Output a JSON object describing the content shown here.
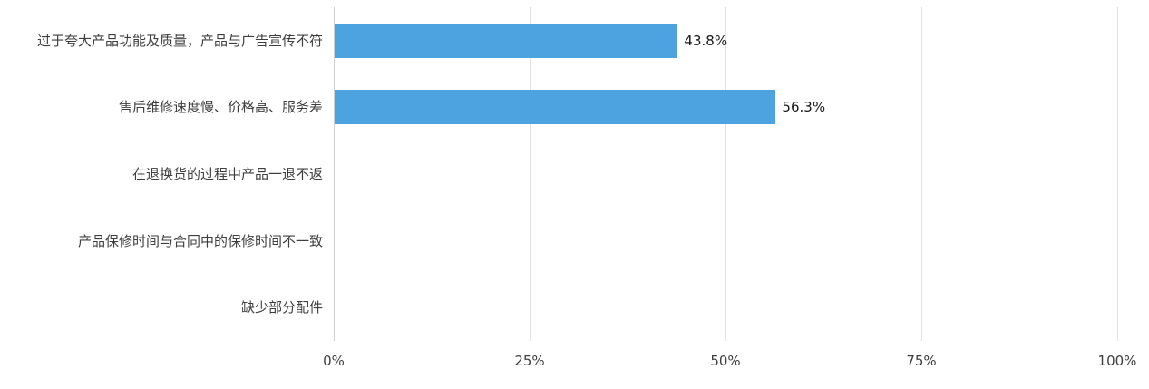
{
  "chart_data": {
    "type": "bar",
    "orientation": "horizontal",
    "title": "",
    "xlabel": "",
    "ylabel": "",
    "categories": [
      "过于夸大产品功能及质量，产品与广告宣传不符",
      "售后维修速度慢、价格高、服务差",
      "在退换货的过程中产品一退不返",
      "产品保修时间与合同中的保修时间不一致",
      "缺少部分配件"
    ],
    "values": [
      43.8,
      56.3,
      0,
      0,
      0
    ],
    "value_labels": [
      "43.8%",
      "56.3%",
      "",
      "",
      ""
    ],
    "x_ticks": [
      "0%",
      "25%",
      "50%",
      "75%",
      "100%"
    ],
    "xlim": [
      0,
      100
    ],
    "grid": true,
    "legend": "none",
    "bar_color": "#4CA3E0"
  }
}
